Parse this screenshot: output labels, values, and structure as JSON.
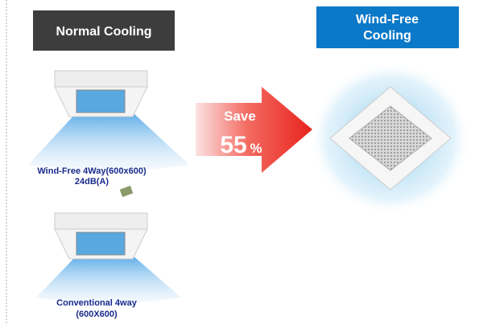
{
  "left_header": "Normal Cooling",
  "right_header": [
    "Wind-Free",
    "Cooling"
  ],
  "saving": {
    "label": "Save",
    "value": "55",
    "unit": "%"
  },
  "units": [
    {
      "lines": [
        "Wind-Free 4Way(600x600)",
        "24dB(A)"
      ]
    },
    {
      "lines": [
        "Conventional 4way",
        "(600X600)"
      ]
    }
  ]
}
